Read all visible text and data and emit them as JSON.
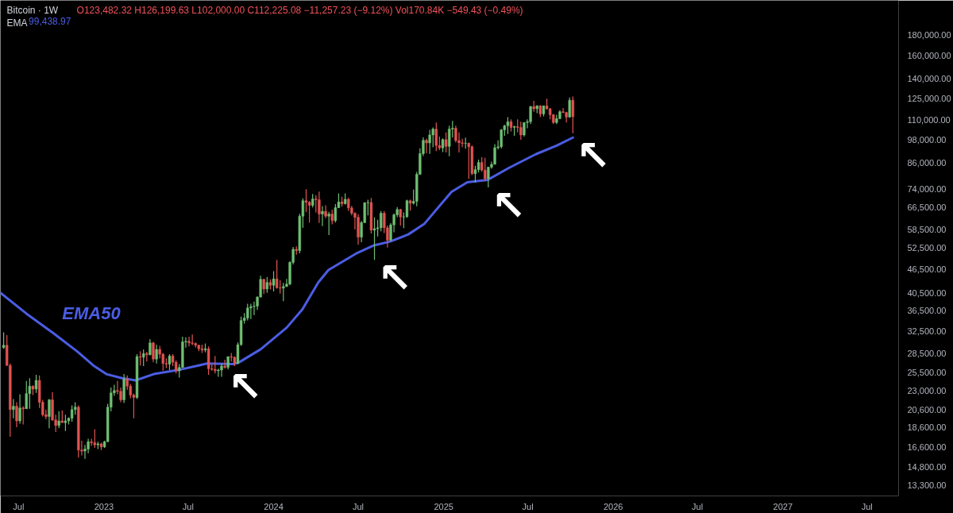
{
  "chart_data": {
    "type": "candlestick",
    "title": "Bitcoin · 1W",
    "subtitle": "O123,482.32 H126,199.63 L102,000.00 C112,225.08 −11,257.23 (−9.12%) Vol170.84K −549.43 (−0.49%)",
    "x": [
      "2022-05-30",
      "2022-06-06",
      "2022-06-13",
      "2022-06-20",
      "2022-06-27",
      "2022-07-04",
      "2022-07-11",
      "2022-07-18",
      "2022-07-25",
      "2022-08-01",
      "2022-08-08",
      "2022-08-15",
      "2022-08-22",
      "2022-08-29",
      "2022-09-05",
      "2022-09-12",
      "2022-09-19",
      "2022-09-26",
      "2022-10-03",
      "2022-10-10",
      "2022-10-17",
      "2022-10-24",
      "2022-10-31",
      "2022-11-07",
      "2022-11-14",
      "2022-11-21",
      "2022-11-28",
      "2022-12-05",
      "2022-12-12",
      "2022-12-19",
      "2022-12-26",
      "2023-01-02",
      "2023-01-09",
      "2023-01-16",
      "2023-01-23",
      "2023-01-30",
      "2023-02-06",
      "2023-02-13",
      "2023-02-20",
      "2023-02-27",
      "2023-03-06",
      "2023-03-13",
      "2023-03-20",
      "2023-03-27",
      "2023-04-03",
      "2023-04-10",
      "2023-04-17",
      "2023-04-24",
      "2023-05-01",
      "2023-05-08",
      "2023-05-15",
      "2023-05-22",
      "2023-05-29",
      "2023-06-05",
      "2023-06-12",
      "2023-06-19",
      "2023-06-26",
      "2023-07-03",
      "2023-07-10",
      "2023-07-17",
      "2023-07-24",
      "2023-07-31",
      "2023-08-07",
      "2023-08-14",
      "2023-08-21",
      "2023-08-28",
      "2023-09-04",
      "2023-09-11",
      "2023-09-18",
      "2023-09-25",
      "2023-10-02",
      "2023-10-09",
      "2023-10-16",
      "2023-10-23",
      "2023-10-30",
      "2023-11-06",
      "2023-11-13",
      "2023-11-20",
      "2023-11-27",
      "2023-12-04",
      "2023-12-11",
      "2023-12-18",
      "2023-12-25",
      "2024-01-01",
      "2024-01-08",
      "2024-01-15",
      "2024-01-22",
      "2024-01-29",
      "2024-02-05",
      "2024-02-12",
      "2024-02-19",
      "2024-02-26",
      "2024-03-04",
      "2024-03-11",
      "2024-03-18",
      "2024-03-25",
      "2024-04-01",
      "2024-04-08",
      "2024-04-15",
      "2024-04-22",
      "2024-04-29",
      "2024-05-06",
      "2024-05-13",
      "2024-05-20",
      "2024-05-27",
      "2024-06-03",
      "2024-06-10",
      "2024-06-17",
      "2024-06-24",
      "2024-07-01",
      "2024-07-08",
      "2024-07-15",
      "2024-07-22",
      "2024-07-29",
      "2024-08-05",
      "2024-08-12",
      "2024-08-19",
      "2024-08-26",
      "2024-09-02",
      "2024-09-09",
      "2024-09-16",
      "2024-09-23",
      "2024-09-30",
      "2024-10-07",
      "2024-10-14",
      "2024-10-21",
      "2024-10-28",
      "2024-11-04",
      "2024-11-11",
      "2024-11-18",
      "2024-11-25",
      "2024-12-02",
      "2024-12-09",
      "2024-12-16",
      "2024-12-23",
      "2024-12-30",
      "2025-01-06",
      "2025-01-13",
      "2025-01-20",
      "2025-01-27",
      "2025-02-03",
      "2025-02-10",
      "2025-02-17",
      "2025-02-24",
      "2025-03-03",
      "2025-03-10",
      "2025-03-17",
      "2025-03-24",
      "2025-03-31",
      "2025-04-07",
      "2025-04-14",
      "2025-04-21",
      "2025-04-28",
      "2025-05-05",
      "2025-05-12",
      "2025-05-19",
      "2025-05-26",
      "2025-06-02",
      "2025-06-09",
      "2025-06-16",
      "2025-06-23",
      "2025-06-30",
      "2025-07-07",
      "2025-07-14",
      "2025-07-21",
      "2025-07-28",
      "2025-08-04",
      "2025-08-11",
      "2025-08-18",
      "2025-08-25",
      "2025-09-01",
      "2025-09-08",
      "2025-09-15",
      "2025-09-22",
      "2025-09-29",
      "2025-10-06"
    ],
    "ohlc": [
      [
        29500,
        32200,
        29300,
        29900
      ],
      [
        29900,
        31700,
        26600,
        26600
      ],
      [
        26600,
        26900,
        17600,
        20600
      ],
      [
        20600,
        21900,
        19600,
        21000
      ],
      [
        21000,
        21500,
        18600,
        19300
      ],
      [
        19300,
        22500,
        19000,
        20800
      ],
      [
        20800,
        21000,
        18900,
        20700
      ],
      [
        20700,
        24300,
        20700,
        22600
      ],
      [
        22600,
        24700,
        20700,
        23600
      ],
      [
        23600,
        23700,
        22400,
        23200
      ],
      [
        23200,
        25200,
        22700,
        24400
      ],
      [
        24400,
        25100,
        20800,
        21500
      ],
      [
        21500,
        21800,
        19800,
        20000
      ],
      [
        20000,
        20600,
        19500,
        19800
      ],
      [
        19800,
        21900,
        18500,
        21800
      ],
      [
        21800,
        22800,
        19300,
        19400
      ],
      [
        19400,
        20000,
        18100,
        18800
      ],
      [
        18800,
        20400,
        18500,
        19300
      ],
      [
        19300,
        20500,
        19100,
        19100
      ],
      [
        19100,
        20000,
        18200,
        19300
      ],
      [
        19300,
        19700,
        18900,
        19600
      ],
      [
        19600,
        21100,
        19200,
        20600
      ],
      [
        20600,
        21500,
        20000,
        20900
      ],
      [
        20900,
        21100,
        15600,
        16300
      ],
      [
        16300,
        17200,
        15800,
        16200
      ],
      [
        16200,
        16800,
        15500,
        16400
      ],
      [
        16400,
        17400,
        16000,
        17100
      ],
      [
        17100,
        17400,
        16700,
        17000
      ],
      [
        17000,
        18400,
        16500,
        16800
      ],
      [
        16800,
        17100,
        16400,
        16900
      ],
      [
        16900,
        17000,
        16300,
        16600
      ],
      [
        16600,
        17200,
        16500,
        17100
      ],
      [
        17100,
        21300,
        17100,
        20900
      ],
      [
        20900,
        23400,
        20400,
        22700
      ],
      [
        22700,
        23800,
        22300,
        23000
      ],
      [
        23000,
        24300,
        22500,
        22900
      ],
      [
        22900,
        23400,
        21500,
        21800
      ],
      [
        21800,
        25300,
        21400,
        24600
      ],
      [
        24600,
        25100,
        23100,
        23600
      ],
      [
        23600,
        23900,
        22000,
        22400
      ],
      [
        22400,
        22600,
        19600,
        22100
      ],
      [
        22100,
        28400,
        21900,
        28000
      ],
      [
        28000,
        28900,
        26600,
        27900
      ],
      [
        27900,
        29200,
        26500,
        28500
      ],
      [
        28500,
        28800,
        27200,
        28300
      ],
      [
        28300,
        31000,
        28200,
        30300
      ],
      [
        30300,
        30500,
        27100,
        27600
      ],
      [
        27600,
        30000,
        26900,
        29200
      ],
      [
        29200,
        29800,
        27700,
        28400
      ],
      [
        28400,
        28600,
        25800,
        26900
      ],
      [
        26900,
        27700,
        26200,
        26800
      ],
      [
        26800,
        28400,
        25900,
        28100
      ],
      [
        28100,
        28400,
        26500,
        27100
      ],
      [
        27100,
        27400,
        25400,
        25800
      ],
      [
        25800,
        26800,
        24800,
        26300
      ],
      [
        26300,
        31400,
        26300,
        30500
      ],
      [
        30500,
        31300,
        29500,
        30600
      ],
      [
        30600,
        31400,
        29700,
        30300
      ],
      [
        30300,
        31800,
        29900,
        30200
      ],
      [
        30200,
        30400,
        29500,
        29900
      ],
      [
        29900,
        30000,
        28900,
        29300
      ],
      [
        29300,
        30000,
        28600,
        29100
      ],
      [
        29100,
        30200,
        28700,
        29300
      ],
      [
        29300,
        29700,
        25200,
        26100
      ],
      [
        26100,
        26800,
        25800,
        26000
      ],
      [
        26000,
        28100,
        25400,
        25800
      ],
      [
        25800,
        26100,
        24900,
        25900
      ],
      [
        25900,
        26900,
        24900,
        26500
      ],
      [
        26500,
        27500,
        26100,
        26300
      ],
      [
        26300,
        28000,
        26000,
        28000
      ],
      [
        28000,
        28600,
        27200,
        27900
      ],
      [
        27900,
        28000,
        26500,
        26900
      ],
      [
        26900,
        30400,
        26800,
        30000
      ],
      [
        30000,
        35300,
        29800,
        34500
      ],
      [
        34500,
        36000,
        33900,
        35000
      ],
      [
        35000,
        38000,
        34500,
        37100
      ],
      [
        37100,
        38000,
        34800,
        37400
      ],
      [
        37400,
        38500,
        35600,
        37500
      ],
      [
        37500,
        39700,
        36700,
        39500
      ],
      [
        39500,
        44700,
        39500,
        43800
      ],
      [
        43800,
        43900,
        40200,
        41400
      ],
      [
        41400,
        44400,
        40500,
        43000
      ],
      [
        43000,
        43800,
        41300,
        42300
      ],
      [
        42300,
        45900,
        40800,
        43900
      ],
      [
        43900,
        49000,
        41500,
        41700
      ],
      [
        41700,
        43600,
        40300,
        41600
      ],
      [
        41600,
        42900,
        38600,
        42000
      ],
      [
        42000,
        43900,
        41900,
        42600
      ],
      [
        42600,
        48600,
        42300,
        48300
      ],
      [
        48300,
        52800,
        47700,
        52100
      ],
      [
        52100,
        53000,
        50500,
        51700
      ],
      [
        51700,
        64000,
        50900,
        63100
      ],
      [
        63100,
        70000,
        59000,
        69000
      ],
      [
        69000,
        73800,
        64600,
        68400
      ],
      [
        68400,
        68900,
        60800,
        67200
      ],
      [
        67200,
        71800,
        66400,
        69700
      ],
      [
        69700,
        71300,
        64500,
        69400
      ],
      [
        69400,
        72800,
        60700,
        63900
      ],
      [
        63900,
        66900,
        59600,
        64900
      ],
      [
        64900,
        67200,
        62400,
        63100
      ],
      [
        63100,
        64700,
        56600,
        63900
      ],
      [
        63900,
        65500,
        60200,
        61500
      ],
      [
        61500,
        67700,
        60800,
        66300
      ],
      [
        66300,
        72000,
        66100,
        68500
      ],
      [
        68500,
        70600,
        66700,
        67800
      ],
      [
        67800,
        72000,
        67500,
        69600
      ],
      [
        69600,
        70200,
        65100,
        66200
      ],
      [
        66200,
        67000,
        63400,
        64200
      ],
      [
        64200,
        64500,
        58400,
        62700
      ],
      [
        62700,
        63800,
        53500,
        55900
      ],
      [
        55900,
        61400,
        54300,
        60800
      ],
      [
        60800,
        68400,
        60600,
        68200
      ],
      [
        68200,
        69400,
        63400,
        68300
      ],
      [
        68300,
        70100,
        57100,
        58200
      ],
      [
        58200,
        62700,
        49000,
        58700
      ],
      [
        58700,
        61800,
        56100,
        59000
      ],
      [
        59000,
        65000,
        57800,
        64200
      ],
      [
        64200,
        65000,
        57200,
        59000
      ],
      [
        59000,
        59800,
        52600,
        54900
      ],
      [
        54900,
        60600,
        54600,
        60000
      ],
      [
        60000,
        64100,
        57500,
        63600
      ],
      [
        63600,
        66500,
        62700,
        65600
      ],
      [
        65600,
        65800,
        59800,
        62800
      ],
      [
        62800,
        64500,
        58900,
        62900
      ],
      [
        62900,
        69400,
        62500,
        69000
      ],
      [
        69000,
        69500,
        65100,
        68000
      ],
      [
        68000,
        73600,
        67500,
        68800
      ],
      [
        68800,
        81500,
        66800,
        80400
      ],
      [
        80400,
        93500,
        80200,
        90600
      ],
      [
        90600,
        99600,
        89400,
        97900
      ],
      [
        97900,
        98900,
        90800,
        96400
      ],
      [
        96400,
        104000,
        90500,
        101000
      ],
      [
        101000,
        105500,
        94000,
        104500
      ],
      [
        104500,
        108500,
        92000,
        95000
      ],
      [
        95000,
        100000,
        92500,
        93700
      ],
      [
        93700,
        99000,
        91500,
        98300
      ],
      [
        98300,
        102500,
        91200,
        94500
      ],
      [
        94500,
        106500,
        89300,
        104500
      ],
      [
        104500,
        109500,
        99500,
        105000
      ],
      [
        105000,
        106500,
        96600,
        97700
      ],
      [
        97700,
        102500,
        91200,
        96500
      ],
      [
        96500,
        98800,
        94100,
        96200
      ],
      [
        96200,
        99500,
        93300,
        96300
      ],
      [
        96300,
        96500,
        78300,
        94300
      ],
      [
        94300,
        95000,
        80000,
        80700
      ],
      [
        80700,
        84500,
        76600,
        82600
      ],
      [
        82600,
        87500,
        81200,
        86100
      ],
      [
        86100,
        88800,
        81600,
        82400
      ],
      [
        82400,
        88500,
        77200,
        78400
      ],
      [
        78400,
        84000,
        74500,
        83800
      ],
      [
        83800,
        86500,
        83000,
        85200
      ],
      [
        85200,
        95800,
        85100,
        93800
      ],
      [
        93800,
        97900,
        92800,
        94300
      ],
      [
        94300,
        104500,
        93400,
        104000
      ],
      [
        104000,
        107000,
        100500,
        106500
      ],
      [
        106500,
        112000,
        101500,
        109000
      ],
      [
        109000,
        110500,
        103000,
        105500
      ],
      [
        105500,
        106500,
        100500,
        106000
      ],
      [
        106000,
        110500,
        102500,
        105500
      ],
      [
        105500,
        109000,
        98200,
        101000
      ],
      [
        101000,
        108500,
        100000,
        108500
      ],
      [
        108500,
        110500,
        105000,
        109000
      ],
      [
        109000,
        119500,
        107500,
        119000
      ],
      [
        119000,
        123000,
        115500,
        117500
      ],
      [
        117500,
        120000,
        114500,
        119500
      ],
      [
        119500,
        120000,
        112000,
        114000
      ],
      [
        114000,
        119500,
        112500,
        119500
      ],
      [
        119500,
        124500,
        117000,
        117500
      ],
      [
        117500,
        118000,
        110500,
        113500
      ],
      [
        113500,
        114000,
        107500,
        108500
      ],
      [
        108500,
        113500,
        107500,
        111000
      ],
      [
        111000,
        116500,
        110500,
        115500
      ],
      [
        115500,
        118000,
        114500,
        115000
      ],
      [
        115000,
        115500,
        108500,
        112000
      ],
      [
        112000,
        125500,
        111500,
        123500
      ],
      [
        123482.32,
        126199.63,
        102000.0,
        112225.08
      ]
    ],
    "colors": [
      "#6fbf73",
      "#e05452",
      "#e05452",
      "#6fbf73",
      "#e05452",
      "#6fbf73",
      "#e05452",
      "#6fbf73",
      "#6fbf73",
      "#e05452",
      "#6fbf73",
      "#e05452",
      "#e05452",
      "#e05452",
      "#6fbf73",
      "#e05452",
      "#e05452",
      "#6fbf73",
      "#e05452",
      "#6fbf73",
      "#6fbf73",
      "#6fbf73",
      "#6fbf73",
      "#e05452",
      "#e05452",
      "#6fbf73",
      "#6fbf73",
      "#e05452",
      "#e05452",
      "#6fbf73",
      "#e05452",
      "#6fbf73",
      "#6fbf73",
      "#6fbf73",
      "#6fbf73",
      "#e05452",
      "#e05452",
      "#6fbf73",
      "#e05452",
      "#e05452",
      "#e05452",
      "#6fbf73",
      "#e05452",
      "#6fbf73",
      "#e05452",
      "#6fbf73",
      "#e05452",
      "#6fbf73",
      "#e05452",
      "#e05452",
      "#e05452",
      "#6fbf73",
      "#e05452",
      "#e05452",
      "#6fbf73",
      "#6fbf73",
      "#6fbf73",
      "#e05452",
      "#e05452",
      "#e05452",
      "#e05452",
      "#e05452",
      "#6fbf73",
      "#e05452",
      "#e05452",
      "#e05452",
      "#6fbf73",
      "#6fbf73",
      "#e05452",
      "#6fbf73",
      "#e05452",
      "#e05452",
      "#6fbf73",
      "#6fbf73",
      "#6fbf73",
      "#6fbf73",
      "#6fbf73",
      "#6fbf73",
      "#6fbf73",
      "#6fbf73",
      "#e05452",
      "#6fbf73",
      "#e05452",
      "#6fbf73",
      "#e05452",
      "#e05452",
      "#6fbf73",
      "#6fbf73",
      "#6fbf73",
      "#6fbf73",
      "#e05452",
      "#6fbf73",
      "#6fbf73",
      "#e05452",
      "#e05452",
      "#6fbf73",
      "#e05452",
      "#e05452",
      "#6fbf73",
      "#e05452",
      "#6fbf73",
      "#e05452",
      "#6fbf73",
      "#6fbf73",
      "#e05452",
      "#6fbf73",
      "#e05452",
      "#e05452",
      "#e05452",
      "#e05452",
      "#6fbf73",
      "#6fbf73",
      "#6fbf73",
      "#e05452",
      "#6fbf73",
      "#6fbf73",
      "#6fbf73",
      "#e05452",
      "#e05452",
      "#6fbf73",
      "#6fbf73",
      "#6fbf73",
      "#e05452",
      "#6fbf73",
      "#6fbf73",
      "#e05452",
      "#6fbf73",
      "#6fbf73",
      "#6fbf73",
      "#6fbf73",
      "#e05452",
      "#6fbf73",
      "#6fbf73",
      "#e05452",
      "#e05452",
      "#6fbf73",
      "#e05452",
      "#6fbf73",
      "#6fbf73",
      "#e05452",
      "#e05452",
      "#e05452",
      "#6fbf73",
      "#e05452",
      "#e05452",
      "#6fbf73",
      "#6fbf73",
      "#e05452",
      "#e05452",
      "#6fbf73",
      "#6fbf73",
      "#6fbf73",
      "#6fbf73",
      "#6fbf73",
      "#6fbf73",
      "#6fbf73",
      "#e05452",
      "#6fbf73",
      "#e05452",
      "#e05452",
      "#6fbf73",
      "#6fbf73",
      "#6fbf73",
      "#e05452",
      "#6fbf73",
      "#e05452",
      "#6fbf73",
      "#e05452",
      "#e05452",
      "#e05452",
      "#6fbf73",
      "#6fbf73",
      "#e05452",
      "#e05452",
      "#6fbf73",
      "#e05452"
    ],
    "series": [
      {
        "type": "line",
        "name": "EMA",
        "color": "#4b5de4",
        "x": [
          "2022-05-23",
          "2022-07-18",
          "2022-09-15",
          "2022-11-05",
          "2022-12-09",
          "2023-01-06",
          "2023-02-09",
          "2023-03-10",
          "2023-04-18",
          "2023-06-16",
          "2023-08-11",
          "2023-10-07",
          "2023-10-19",
          "2023-12-04",
          "2024-01-29",
          "2024-03-03",
          "2024-04-06",
          "2024-04-28",
          "2024-06-26",
          "2024-08-04",
          "2024-09-08",
          "2024-10-17",
          "2024-11-20",
          "2025-01-06",
          "2025-01-18",
          "2025-02-21",
          "2025-04-06",
          "2025-05-22",
          "2025-07-18",
          "2025-09-02",
          "2025-10-06"
        ],
        "values": [
          40500,
          35900,
          32000,
          28800,
          26600,
          25300,
          24700,
          24400,
          25300,
          26000,
          26900,
          26800,
          27100,
          29200,
          33100,
          36800,
          43000,
          46200,
          50800,
          53300,
          54500,
          56800,
          60300,
          70000,
          72700,
          76800,
          77900,
          83500,
          90300,
          95000,
          99439
        ]
      }
    ],
    "annotations": [
      "99,438.97",
      {
        "text": "EMA50",
        "x": "2022-07-18",
        "y": 35900
      },
      {
        "text": "↖",
        "x": "2023-09-18",
        "y": 26100
      },
      {
        "text": "↖",
        "x": "2024-08-05",
        "y": 49000
      },
      {
        "text": "↖",
        "x": "2025-04-07",
        "y": 74500
      },
      {
        "text": "↖",
        "x": "2025-10-06",
        "y": 99439
      }
    ],
    "legend": "top left",
    "log": true,
    "xlim": [
      "2022-05-23",
      "2027-09-07"
    ],
    "xticks": [
      {
        "value": "2022-07",
        "label": "Jul"
      },
      "2023",
      {
        "value": "2023-07",
        "label": "Jul"
      },
      "2024",
      {
        "value": "2024-07",
        "label": "Jul"
      },
      "2025",
      {
        "value": "2025-07",
        "label": "Jul"
      },
      "2026",
      {
        "value": "2026-07",
        "label": "Jul"
      },
      "2027",
      {
        "value": "2027-07",
        "label": "Jul"
      }
    ],
    "ylim": [
      12500,
      220000
    ],
    "yticks": [
      {
        "value": 13300,
        "label": "13,300.00"
      },
      {
        "value": 14800,
        "label": "14,800.00"
      },
      {
        "value": 16600,
        "label": "16,600.00"
      },
      {
        "value": 18600,
        "label": "18,600.00"
      },
      {
        "value": 20600,
        "label": "20,600.00"
      },
      {
        "value": 23000,
        "label": "23,000.00"
      },
      {
        "value": 25500,
        "label": "25,500.00"
      },
      {
        "value": 28500,
        "label": "28,500.00"
      },
      {
        "value": 32500,
        "label": "32,500.00"
      },
      {
        "value": 36500,
        "label": "36,500.00"
      },
      {
        "value": 40500,
        "label": "40,500.00"
      },
      {
        "value": 46500,
        "label": "46,500.00"
      },
      {
        "value": 52500,
        "label": "52,500.00"
      },
      {
        "value": 58500,
        "label": "58,500.00"
      },
      {
        "value": 66500,
        "label": "66,500.00"
      },
      {
        "value": 74000,
        "label": "74,000.00"
      },
      {
        "value": 86000,
        "label": "86,000.00"
      },
      {
        "value": 98000,
        "label": "98,000.00"
      },
      {
        "value": 110000,
        "label": "110,000.00"
      },
      {
        "value": 125000,
        "label": "125,000.00"
      },
      {
        "value": 140000,
        "label": "140,000.00"
      },
      {
        "value": 160000,
        "label": "160,000.00"
      },
      {
        "value": 180000,
        "label": "180,000.00"
      }
    ]
  }
}
